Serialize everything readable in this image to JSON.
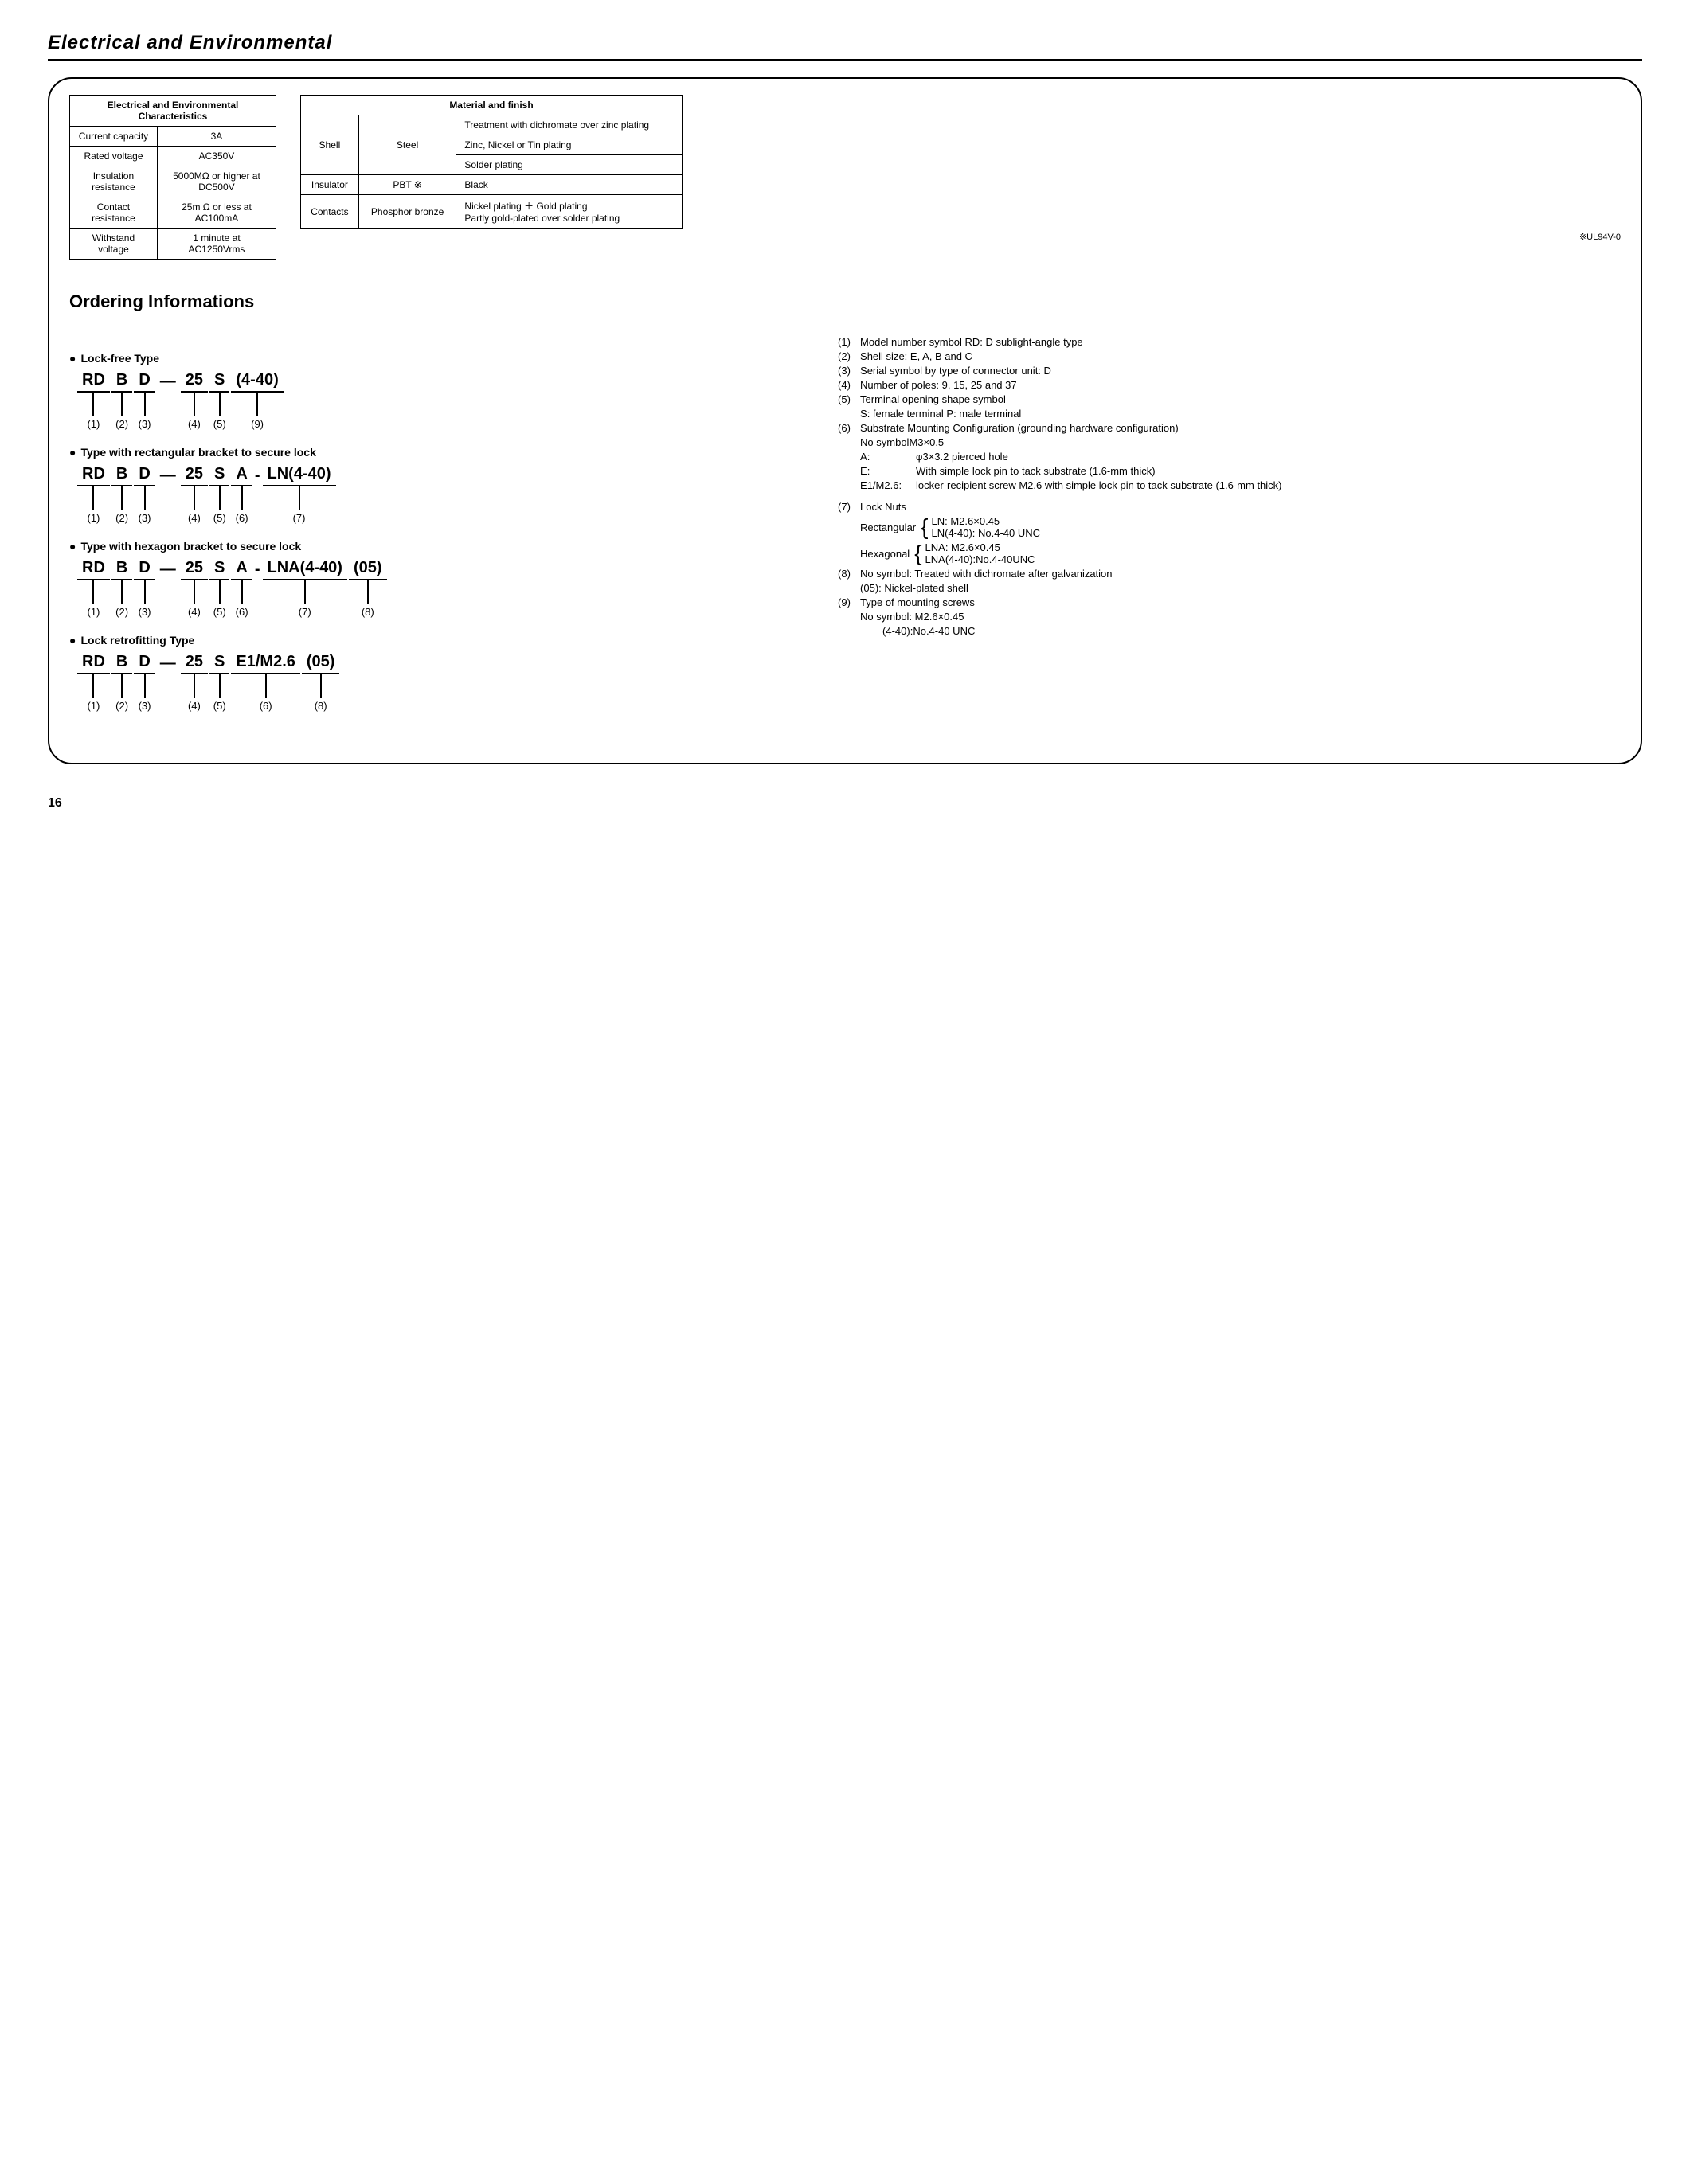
{
  "headings": {
    "main": "Electrical and Environmental",
    "ordering": "Ordering Informations"
  },
  "elec_table": {
    "title": "Electrical and Environmental Characteristics",
    "rows": [
      {
        "label": "Current capacity",
        "value": "3A"
      },
      {
        "label": "Rated voltage",
        "value": "AC350V"
      },
      {
        "label": "Insulation resistance",
        "value": "5000MΩ or higher at DC500V"
      },
      {
        "label": "Contact resistance",
        "value": "25m Ω or less at AC100mA"
      },
      {
        "label": "Withstand voltage",
        "value": "1 minute at AC1250Vrms"
      }
    ]
  },
  "mat_table": {
    "title": "Material and finish",
    "shell_label": "Shell",
    "shell_mat": "Steel",
    "shell_treat": [
      "Treatment with dichromate over zinc plating",
      "Zinc, Nickel or Tin plating",
      "Solder plating"
    ],
    "insulator": {
      "label": "Insulator",
      "mat": "PBT ※",
      "treat": "Black"
    },
    "contacts": {
      "label": "Contacts",
      "mat": "Phosphor bronze",
      "treat": "Nickel plating ＋ Gold plating\nPartly gold-plated over solder plating"
    },
    "footnote": "※UL94V-0"
  },
  "types": {
    "lockfree": {
      "title": "Lock-free Type",
      "parts": [
        "RD",
        "B",
        "D",
        "25",
        "S",
        "(4-40)"
      ],
      "nums": [
        "(1)",
        "(2)",
        "(3)",
        "(4)",
        "(5)",
        "(9)"
      ]
    },
    "rect": {
      "title": "Type with rectangular bracket to secure lock",
      "parts": [
        "RD",
        "B",
        "D",
        "25",
        "S",
        "A",
        "LN(4-40)"
      ],
      "nums": [
        "(1)",
        "(2)",
        "(3)",
        "(4)",
        "(5)",
        "(6)",
        "(7)"
      ]
    },
    "hex": {
      "title": "Type with hexagon bracket to secure lock",
      "parts": [
        "RD",
        "B",
        "D",
        "25",
        "S",
        "A",
        "LNA(4-40)",
        "(05)"
      ],
      "nums": [
        "(1)",
        "(2)",
        "(3)",
        "(4)",
        "(5)",
        "(6)",
        "(7)",
        "(8)"
      ]
    },
    "retro": {
      "title": "Lock retrofitting Type",
      "parts": [
        "RD",
        "B",
        "D",
        "25",
        "S",
        "E1/M2.6",
        "(05)"
      ],
      "nums": [
        "(1)",
        "(2)",
        "(3)",
        "(4)",
        "(5)",
        "(6)",
        "(8)"
      ]
    }
  },
  "legend": {
    "l1": "Model number symbol   RD: D sublight-angle type",
    "l2": "Shell size: E, A, B and C",
    "l3": "Serial symbol by type of connector unit: D",
    "l4": "Number of poles: 9, 15, 25 and 37",
    "l5a": "Terminal opening shape symbol",
    "l5b": "S: female terminal   P: male terminal",
    "l6a": "Substrate Mounting Configuration (grounding hardware configuration)",
    "l6b": "No symbolM3×0.5",
    "l6_A_k": "A:",
    "l6_A_v": "φ3×3.2 pierced hole",
    "l6_E_k": "E:",
    "l6_E_v": "With simple lock pin to tack substrate (1.6-mm thick)",
    "l6_M_k": "E1/M2.6:",
    "l6_M_v": "locker-recipient screw M2.6 with simple lock pin to tack substrate (1.6-mm thick)",
    "l7": "Lock Nuts",
    "l7_rect_label": "Rectangular",
    "l7_rect_a": "LN: M2.6×0.45",
    "l7_rect_b": "LN(4-40): No.4-40 UNC",
    "l7_hex_label": "Hexagonal",
    "l7_hex_a": "LNA: M2.6×0.45",
    "l7_hex_b": "LNA(4-40):No.4-40UNC",
    "l8a": "No symbol: Treated with dichromate after galvanization",
    "l8b": "(05): Nickel-plated shell",
    "l9a": "Type of mounting screws",
    "l9b": "No symbol: M2.6×0.45",
    "l9c": "(4-40):No.4-40 UNC"
  },
  "page": "16"
}
